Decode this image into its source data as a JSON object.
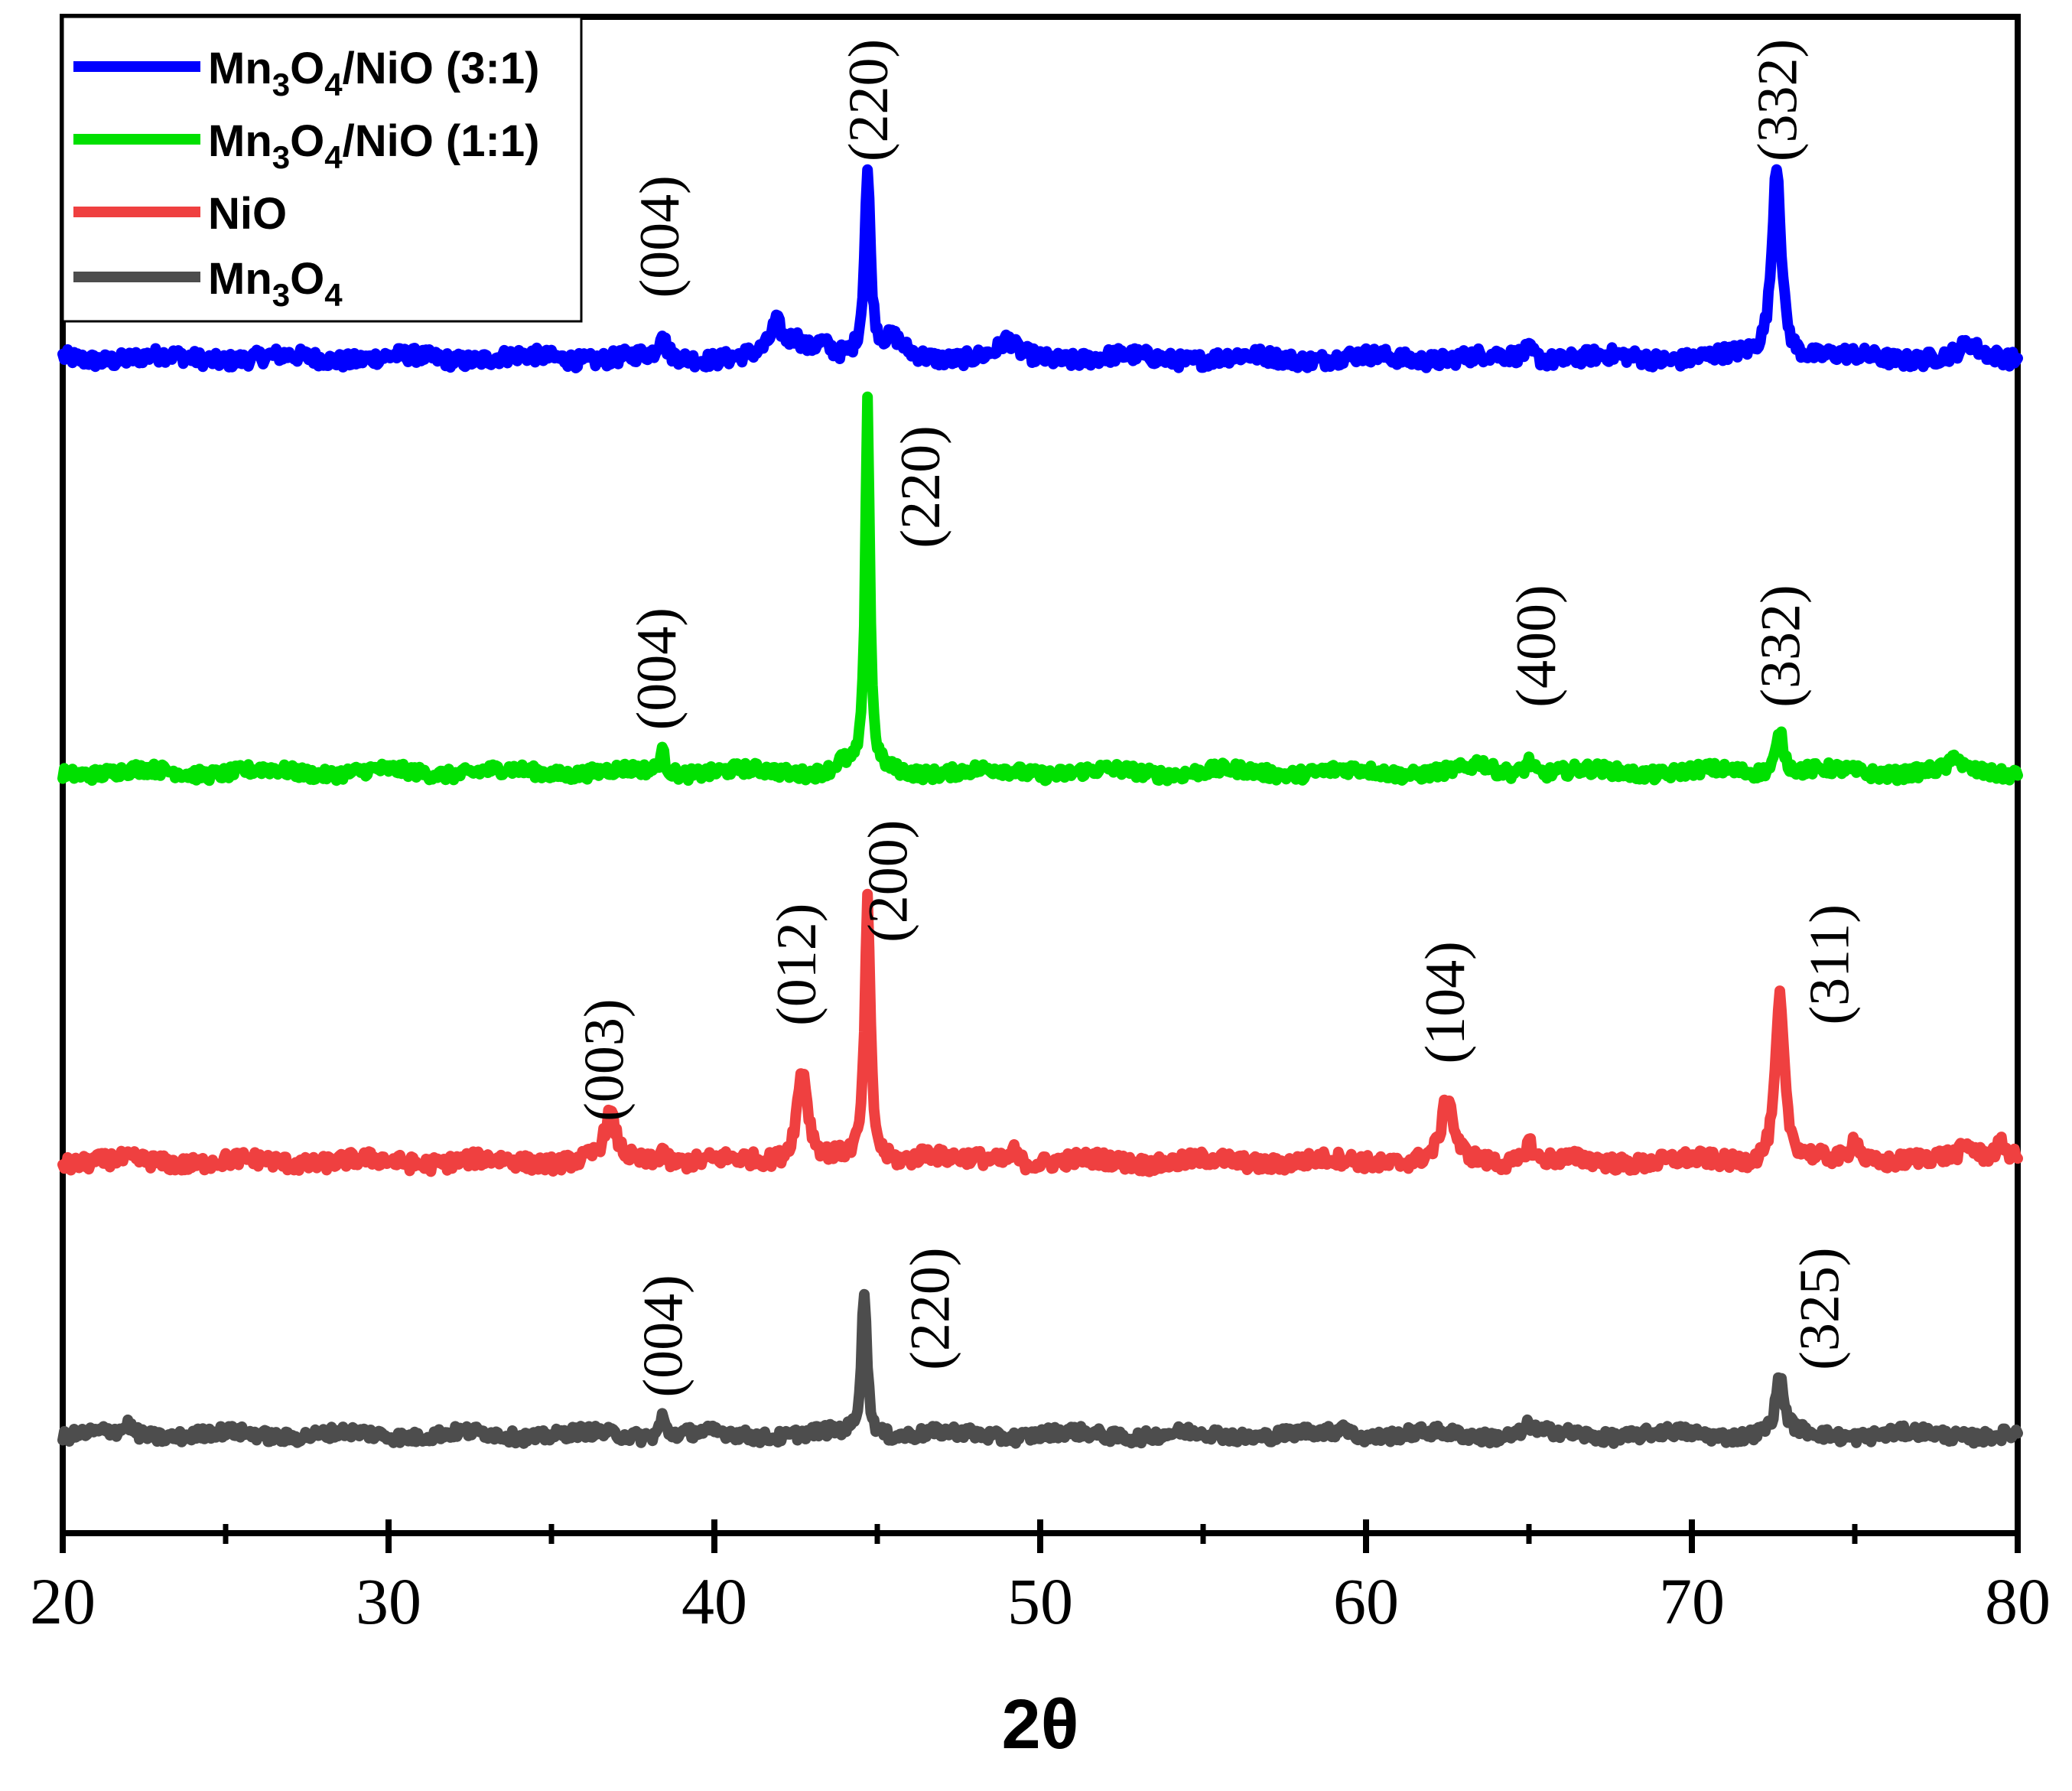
{
  "chart_data": {
    "type": "line",
    "title": "",
    "xlabel": "2θ",
    "ylabel": "",
    "xlim": [
      20,
      80
    ],
    "ylim": [
      0,
      10
    ],
    "x_ticks": [
      20,
      30,
      40,
      50,
      60,
      70,
      80
    ],
    "x_minor_ticks": [
      25,
      35,
      45,
      55,
      65,
      75
    ],
    "legend_position": "top-left",
    "series": [
      {
        "name": "Mn3O4/NiO (3:1)",
        "legend_main": "Mn",
        "legend_sub1": "3",
        "legend_mid": "O",
        "legend_sub2": "4",
        "legend_tail": "/NiO (3:1)",
        "color": "#0000ff",
        "baseline": 7.75,
        "noise": 0.05,
        "peaks": [
          {
            "x": 38.4,
            "h": 0.17,
            "w": 0.15
          },
          {
            "x": 41.9,
            "h": 0.2,
            "w": 0.3
          },
          {
            "x": 42.5,
            "h": 0.1,
            "w": 0.4
          },
          {
            "x": 43.3,
            "h": 0.1,
            "w": 0.5
          },
          {
            "x": 44.7,
            "h": 1.2,
            "w": 0.16
          },
          {
            "x": 45.5,
            "h": 0.1,
            "w": 0.5
          },
          {
            "x": 49.0,
            "h": 0.1,
            "w": 0.4
          },
          {
            "x": 65.0,
            "h": 0.06,
            "w": 0.3
          },
          {
            "x": 72.6,
            "h": 1.3,
            "w": 0.25
          },
          {
            "x": 78.5,
            "h": 0.08,
            "w": 0.4
          }
        ],
        "labels": [
          {
            "text": "(004)",
            "x": 38.9,
            "y": 8.55
          },
          {
            "text": "(220)",
            "x": 45.3,
            "y": 9.45
          },
          {
            "text": "(332)",
            "x": 73.2,
            "y": 9.45
          }
        ]
      },
      {
        "name": "Mn3O4/NiO (1:1)",
        "legend_main": "Mn",
        "legend_sub1": "3",
        "legend_mid": "O",
        "legend_sub2": "4",
        "legend_tail": "/NiO (1:1)",
        "color": "#00e000",
        "baseline": 5.02,
        "noise": 0.04,
        "peaks": [
          {
            "x": 38.4,
            "h": 0.14,
            "w": 0.15
          },
          {
            "x": 43.9,
            "h": 0.06,
            "w": 0.3
          },
          {
            "x": 44.7,
            "h": 2.45,
            "w": 0.12
          },
          {
            "x": 63.5,
            "h": 0.05,
            "w": 0.3
          },
          {
            "x": 65.0,
            "h": 0.09,
            "w": 0.2
          },
          {
            "x": 72.7,
            "h": 0.27,
            "w": 0.22
          },
          {
            "x": 78.1,
            "h": 0.1,
            "w": 0.2
          }
        ],
        "labels": [
          {
            "text": "(004)",
            "x": 38.8,
            "y": 5.7
          },
          {
            "text": "(220)",
            "x": 46.9,
            "y": 6.9
          },
          {
            "text": "(400)",
            "x": 65.8,
            "y": 5.85
          },
          {
            "text": "(332)",
            "x": 73.3,
            "y": 5.85
          }
        ]
      },
      {
        "name": "NiO",
        "legend_main": "NiO",
        "legend_sub1": "",
        "legend_mid": "",
        "legend_sub2": "",
        "legend_tail": "",
        "color": "#ef4040",
        "baseline": 2.45,
        "noise": 0.05,
        "peaks": [
          {
            "x": 36.8,
            "h": 0.3,
            "w": 0.3
          },
          {
            "x": 38.4,
            "h": 0.1,
            "w": 0.15
          },
          {
            "x": 42.7,
            "h": 0.62,
            "w": 0.3
          },
          {
            "x": 44.7,
            "h": 1.7,
            "w": 0.15
          },
          {
            "x": 46.5,
            "h": 0.06,
            "w": 0.6
          },
          {
            "x": 49.2,
            "h": 0.08,
            "w": 0.2
          },
          {
            "x": 62.5,
            "h": 0.42,
            "w": 0.3
          },
          {
            "x": 65.0,
            "h": 0.14,
            "w": 0.2
          },
          {
            "x": 72.7,
            "h": 1.08,
            "w": 0.24
          },
          {
            "x": 75.0,
            "h": 0.16,
            "w": 0.25
          },
          {
            "x": 78.5,
            "h": 0.1,
            "w": 0.5
          },
          {
            "x": 79.5,
            "h": 0.12,
            "w": 0.4
          }
        ],
        "labels": [
          {
            "text": "(003)",
            "x": 37.2,
            "y": 3.12
          },
          {
            "text": "(012)",
            "x": 43.1,
            "y": 3.75
          },
          {
            "text": "(200)",
            "x": 45.9,
            "y": 4.3
          },
          {
            "text": "(104)",
            "x": 63.0,
            "y": 3.5
          },
          {
            "text": "(311)",
            "x": 74.8,
            "y": 3.75
          }
        ]
      },
      {
        "name": "Mn3O4",
        "legend_main": "Mn",
        "legend_sub1": "3",
        "legend_mid": "O",
        "legend_sub2": "4",
        "legend_tail": "",
        "color": "#4d4d4d",
        "baseline": 0.65,
        "noise": 0.04,
        "peaks": [
          {
            "x": 22.0,
            "h": 0.06,
            "w": 0.2
          },
          {
            "x": 38.4,
            "h": 0.13,
            "w": 0.15
          },
          {
            "x": 44.6,
            "h": 0.95,
            "w": 0.15
          },
          {
            "x": 59.3,
            "h": 0.07,
            "w": 0.2
          },
          {
            "x": 65.0,
            "h": 0.06,
            "w": 0.2
          },
          {
            "x": 72.7,
            "h": 0.37,
            "w": 0.22
          }
        ],
        "labels": [
          {
            "text": "(004)",
            "x": 39.0,
            "y": 1.3
          },
          {
            "text": "(220)",
            "x": 47.2,
            "y": 1.48
          },
          {
            "text": "(325)",
            "x": 74.5,
            "y": 1.48
          }
        ]
      }
    ]
  }
}
